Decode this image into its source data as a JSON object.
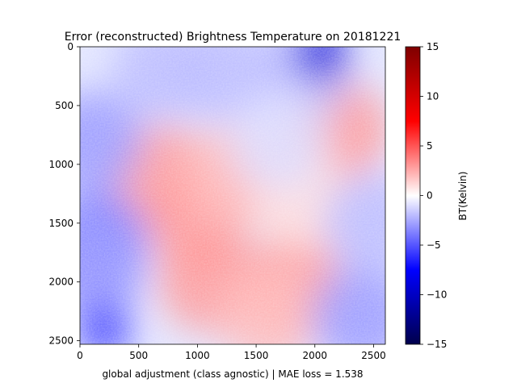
{
  "chart_data": {
    "type": "heatmap",
    "title": "Error (reconstructed) Brightness Temperature on 20181221",
    "xlabel": "global adjustment (class agnostic) | MAE loss = 1.538",
    "ylabel": "",
    "xlim": [
      0,
      2600
    ],
    "ylim": [
      2530,
      0
    ],
    "x_ticks": [
      0,
      500,
      1000,
      1500,
      2000,
      2500
    ],
    "y_ticks": [
      0,
      500,
      1000,
      1500,
      2000,
      2500
    ],
    "colormap": "seismic",
    "colorbar": {
      "label": "BT(Kelvin)",
      "range": [
        -15,
        15
      ],
      "ticks": [
        15,
        10,
        5,
        0,
        -5,
        -10,
        -15
      ]
    },
    "mae_loss": 1.538,
    "summary": "Error map: predominantly positive (red, +2 to +5 K) over the central and southern urban area, negative (blue, -2 to -6 K) along the western edge, upper band and south-east water bodies; strongest negatives near the top-right corner and bottom-left.",
    "regions": [
      {
        "x": 1000,
        "y": 1500,
        "value": 3
      },
      {
        "x": 700,
        "y": 1100,
        "value": 3
      },
      {
        "x": 1300,
        "y": 1100,
        "value": 2
      },
      {
        "x": 1100,
        "y": 2000,
        "value": 3
      },
      {
        "x": 1800,
        "y": 2000,
        "value": 3
      },
      {
        "x": 2200,
        "y": 700,
        "value": 3
      },
      {
        "x": 1600,
        "y": 2300,
        "value": 2
      },
      {
        "x": 1900,
        "y": 1300,
        "value": 1
      },
      {
        "x": 100,
        "y": 800,
        "value": -3
      },
      {
        "x": 150,
        "y": 1650,
        "value": -4
      },
      {
        "x": 120,
        "y": 1900,
        "value": -3
      },
      {
        "x": 700,
        "y": 200,
        "value": -2
      },
      {
        "x": 1200,
        "y": 200,
        "value": -2
      },
      {
        "x": 1900,
        "y": 200,
        "value": -2
      },
      {
        "x": 2050,
        "y": 50,
        "value": -9
      },
      {
        "x": 2400,
        "y": 2300,
        "value": -3
      },
      {
        "x": 200,
        "y": 2400,
        "value": -6
      },
      {
        "x": 2500,
        "y": 1500,
        "value": -2
      },
      {
        "x": 1700,
        "y": 800,
        "value": -1
      }
    ],
    "colors": {
      "neg_max": "#00004c",
      "neg_mid": "#0000ff",
      "zero": "#ffffff",
      "pos_mid": "#ff0000",
      "pos_max": "#7f0000"
    }
  }
}
